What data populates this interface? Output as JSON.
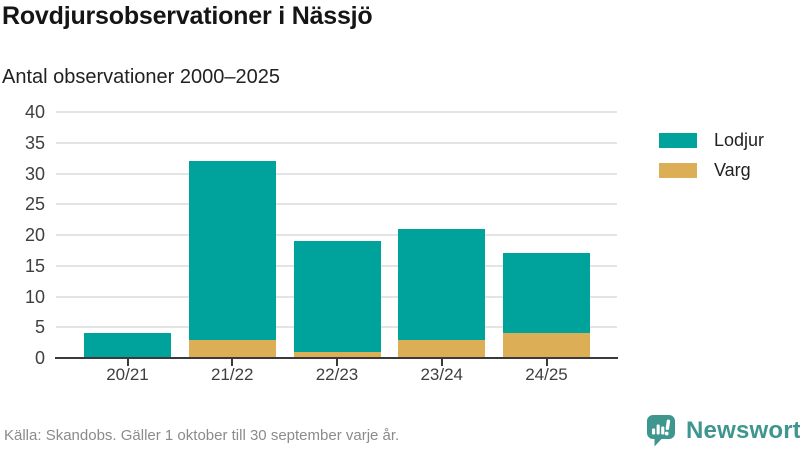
{
  "header": {
    "title": "Rovdjursobservationer i Nässjö",
    "subtitle": "Antal observationer 2000–2025"
  },
  "chart_data": {
    "type": "bar",
    "stacked": true,
    "title": "Rovdjursobservationer i Nässjö",
    "subtitle": "Antal observationer 2000–2025",
    "categories": [
      "20/21",
      "21/22",
      "22/23",
      "23/24",
      "24/25"
    ],
    "series": [
      {
        "name": "Lodjur",
        "color": "#00a39b",
        "values": [
          4,
          29,
          18,
          18,
          13
        ]
      },
      {
        "name": "Varg",
        "color": "#dcae55",
        "values": [
          0,
          3,
          1,
          3,
          4
        ]
      }
    ],
    "stack_order_bottom_to_top": [
      "Varg",
      "Lodjur"
    ],
    "stack_totals": [
      4,
      32,
      19,
      21,
      17
    ],
    "xlabel": "",
    "ylabel": "",
    "ylim": [
      0,
      40
    ],
    "yticks": [
      0,
      5,
      10,
      15,
      20,
      25,
      30,
      35,
      40
    ],
    "grid": "horizontal",
    "legend_position": "right"
  },
  "footer": {
    "source": "Källa: Skandobs. Gäller 1 oktober till 30 september varje år.",
    "brand_name": "Newsworthy",
    "brand_color": "#3f968f"
  },
  "colors": {
    "gridline": "#e4e4e4",
    "axis_line": "#3a3a3a",
    "axis_text": "#3f3f3f",
    "muted_text": "#8b8b8b"
  }
}
